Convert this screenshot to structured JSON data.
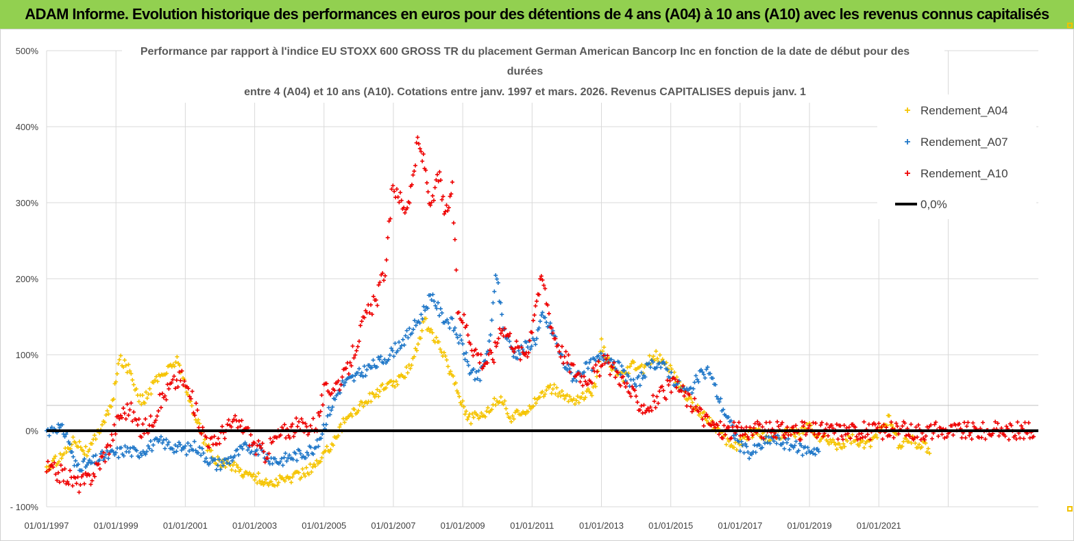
{
  "banner": {
    "title": "ADAM Informe. Evolution historique des performances en euros pour des détentions de 4 ans (A04) à 10 ans (A10) avec les revenus connus capitalisés"
  },
  "chart_data": {
    "type": "scatter",
    "title_lines": [
      "Performance par rapport à l'indice EU STOXX 600 GROSS TR  du placement German American Bancorp Inc en fonction de la date de début pour des",
      "durées",
      "entre 4 (A04) et 10 ans (A10).  Cotations entre janv. 1997 et mars. 2026. Revenus CAPITALISES depuis janv. 1"
    ],
    "xlabel": "",
    "ylabel": "",
    "ylim": [
      -100,
      500
    ],
    "yticks": [
      -100,
      0,
      100,
      200,
      300,
      400,
      500
    ],
    "ytick_labels": [
      "- 100%",
      "0%",
      "100%",
      "200%",
      "300%",
      "400%",
      "500%"
    ],
    "xlim": [
      1997.0,
      2025.6
    ],
    "xtick_labels": [
      "01/01/1997",
      "01/01/1999",
      "01/01/2001",
      "01/01/2003",
      "01/01/2005",
      "01/01/2007",
      "01/01/2009",
      "01/01/2011",
      "01/01/2013",
      "01/01/2015",
      "01/01/2017",
      "01/01/2019",
      "01/01/2021"
    ],
    "grid": true,
    "legend_position": "right",
    "colors": {
      "A04": "#f5c400",
      "A07": "#1f77c8",
      "A10": "#ee0000",
      "zero": "#000000"
    },
    "series": [
      {
        "name": "Rendement_A04",
        "x": [
          1997.0,
          1997.5,
          1997.8,
          1998.2,
          1998.6,
          1998.9,
          1999.1,
          1999.4,
          1999.7,
          1999.9,
          2000.2,
          2000.5,
          2000.8,
          2001.0,
          2001.3,
          2001.6,
          2001.9,
          2002.3,
          2002.7,
          2003.0,
          2003.4,
          2003.8,
          2004.2,
          2004.6,
          2004.9,
          2005.3,
          2005.7,
          2006.1,
          2006.5,
          2006.9,
          2007.3,
          2007.6,
          2007.9,
          2008.2,
          2008.5,
          2008.8,
          2009.0,
          2009.2,
          2009.5,
          2009.8,
          2010.1,
          2010.4,
          2010.7,
          2011.0,
          2011.3,
          2011.6,
          2011.9,
          2012.2,
          2012.5,
          2012.8,
          2013.0,
          2013.3,
          2013.6,
          2013.9,
          2014.2,
          2014.5,
          2014.8,
          2015.1,
          2015.4,
          2015.7,
          2016.0,
          2016.3,
          2016.6,
          2016.9,
          2017.2,
          2017.5,
          2017.8,
          2018.1,
          2018.4,
          2018.7,
          2019.0,
          2019.3,
          2019.6,
          2019.9,
          2020.2,
          2020.5,
          2020.8,
          2021.1,
          2021.3,
          2021.6,
          2021.9,
          2022.2,
          2022.5
        ],
        "y": [
          -50,
          -30,
          -10,
          -30,
          10,
          35,
          95,
          80,
          40,
          45,
          70,
          80,
          95,
          55,
          20,
          -20,
          -40,
          -45,
          -55,
          -60,
          -70,
          -65,
          -60,
          -50,
          -40,
          -10,
          20,
          35,
          50,
          60,
          70,
          100,
          145,
          120,
          95,
          60,
          35,
          15,
          20,
          30,
          45,
          15,
          25,
          35,
          50,
          55,
          45,
          40,
          45,
          55,
          115,
          80,
          70,
          85,
          80,
          100,
          95,
          70,
          50,
          30,
          20,
          5,
          -15,
          -20,
          -5,
          0,
          -10,
          -5,
          0,
          -5,
          5,
          -10,
          -15,
          -20,
          -10,
          -20,
          -15,
          10,
          15,
          -20,
          -10,
          -20,
          -25
        ]
      },
      {
        "name": "Rendement_A07",
        "x": [
          1997.0,
          1997.3,
          1997.6,
          1997.8,
          1998.2,
          1998.6,
          1999.0,
          1999.3,
          1999.6,
          2000.0,
          2000.3,
          2000.6,
          2001.0,
          2001.3,
          2001.6,
          2001.9,
          2002.2,
          2002.5,
          2002.8,
          2003.1,
          2003.4,
          2003.7,
          2004.0,
          2004.4,
          2004.8,
          2005.1,
          2005.5,
          2005.9,
          2006.2,
          2006.6,
          2006.9,
          2007.2,
          2007.5,
          2007.8,
          2008.1,
          2008.4,
          2008.7,
          2009.0,
          2009.2,
          2009.5,
          2009.8,
          2009.95,
          2010.2,
          2010.5,
          2010.8,
          2011.1,
          2011.3,
          2011.6,
          2011.9,
          2012.2,
          2012.5,
          2012.8,
          2013.1,
          2013.4,
          2013.7,
          2014.0,
          2014.3,
          2014.6,
          2014.9,
          2015.2,
          2015.5,
          2015.8,
          2016.1,
          2016.4,
          2016.7,
          2017.0,
          2017.3,
          2017.6,
          2017.9,
          2018.2,
          2018.5,
          2018.8,
          2019.1,
          2019.3
        ],
        "y": [
          0,
          5,
          -5,
          -45,
          -45,
          -35,
          -30,
          -25,
          -30,
          -20,
          -15,
          -20,
          -25,
          -20,
          -35,
          -45,
          -40,
          -30,
          -20,
          -25,
          -35,
          -40,
          -35,
          -30,
          -20,
          20,
          60,
          70,
          80,
          90,
          100,
          115,
          130,
          150,
          180,
          150,
          140,
          110,
          80,
          70,
          120,
          210,
          130,
          100,
          110,
          120,
          150,
          130,
          90,
          70,
          80,
          90,
          100,
          90,
          70,
          60,
          80,
          90,
          80,
          60,
          50,
          70,
          80,
          40,
          10,
          -20,
          -30,
          -20,
          -10,
          -15,
          -20,
          -25,
          -25,
          -25
        ]
      },
      {
        "name": "Rendement_A10",
        "x": [
          1997.0,
          1997.3,
          1997.6,
          1997.9,
          1998.2,
          1998.5,
          1998.8,
          1999.1,
          1999.4,
          1999.7,
          2000.0,
          2000.3,
          2000.6,
          2000.9,
          2001.2,
          2001.5,
          2001.8,
          2002.1,
          2002.4,
          2002.7,
          2003.0,
          2003.3,
          2003.6,
          2003.9,
          2004.2,
          2004.5,
          2004.8,
          2005.0,
          2005.3,
          2005.6,
          2005.9,
          2006.2,
          2006.5,
          2006.8,
          2006.95,
          2007.1,
          2007.3,
          2007.5,
          2007.7,
          2007.9,
          2008.1,
          2008.3,
          2008.5,
          2008.7,
          2008.85,
          2009.0,
          2009.3,
          2009.6,
          2009.9,
          2010.1,
          2010.4,
          2010.7,
          2010.9,
          2011.1,
          2011.3,
          2011.6,
          2011.9,
          2012.2,
          2012.5,
          2012.8,
          2013.1,
          2013.4,
          2013.7,
          2014.0,
          2014.3,
          2014.6,
          2014.9,
          2015.2,
          2015.5,
          2015.8,
          2016.1,
          2016.5,
          2017.0,
          2018.0,
          2019.0,
          2020.0,
          2021.0,
          2022.0,
          2023.0,
          2024.0,
          2025.0,
          2025.5
        ],
        "y": [
          -50,
          -55,
          -60,
          -70,
          -65,
          -45,
          -20,
          20,
          30,
          0,
          10,
          40,
          60,
          70,
          40,
          0,
          -20,
          0,
          10,
          5,
          -20,
          -30,
          -10,
          0,
          5,
          5,
          10,
          50,
          60,
          70,
          110,
          150,
          170,
          220,
          310,
          320,
          290,
          310,
          380,
          350,
          290,
          340,
          280,
          320,
          160,
          150,
          110,
          90,
          100,
          140,
          120,
          100,
          110,
          170,
          200,
          130,
          100,
          80,
          70,
          75,
          90,
          80,
          60,
          40,
          30,
          40,
          55,
          60,
          40,
          25,
          10,
          0,
          0,
          0,
          0,
          0,
          0,
          0,
          0,
          0,
          0,
          0
        ]
      },
      {
        "name": "0,0%",
        "x": [
          1997.0,
          2025.6
        ],
        "y": [
          0,
          0
        ]
      }
    ]
  }
}
